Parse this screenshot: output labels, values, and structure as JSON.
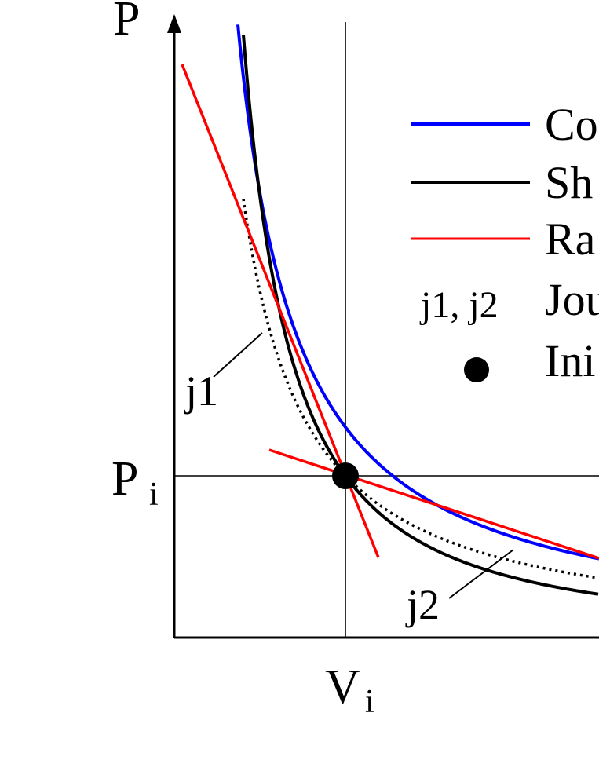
{
  "axes": {
    "y_label": "P",
    "x_label": "V",
    "pi_label": "P",
    "pi_sub": "i",
    "vi_label": "V",
    "vi_sub": "i"
  },
  "callouts": {
    "j1": "j1",
    "j2": "j2"
  },
  "legend": {
    "items": [
      {
        "swatch": "line",
        "color": "#0000ff",
        "label": "Co"
      },
      {
        "swatch": "line",
        "color": "#000000",
        "label": "Sh"
      },
      {
        "swatch": "line",
        "color": "#ff0000",
        "label": "Ra"
      },
      {
        "swatch": "text",
        "text": "j1, j2",
        "label": "Jou"
      },
      {
        "swatch": "dot",
        "color": "#000000",
        "label": "Ini"
      }
    ]
  },
  "colors": {
    "blue_curve": "#0000ff",
    "black_curve": "#000000",
    "red_line": "#ff0000",
    "axis": "#000000"
  }
}
